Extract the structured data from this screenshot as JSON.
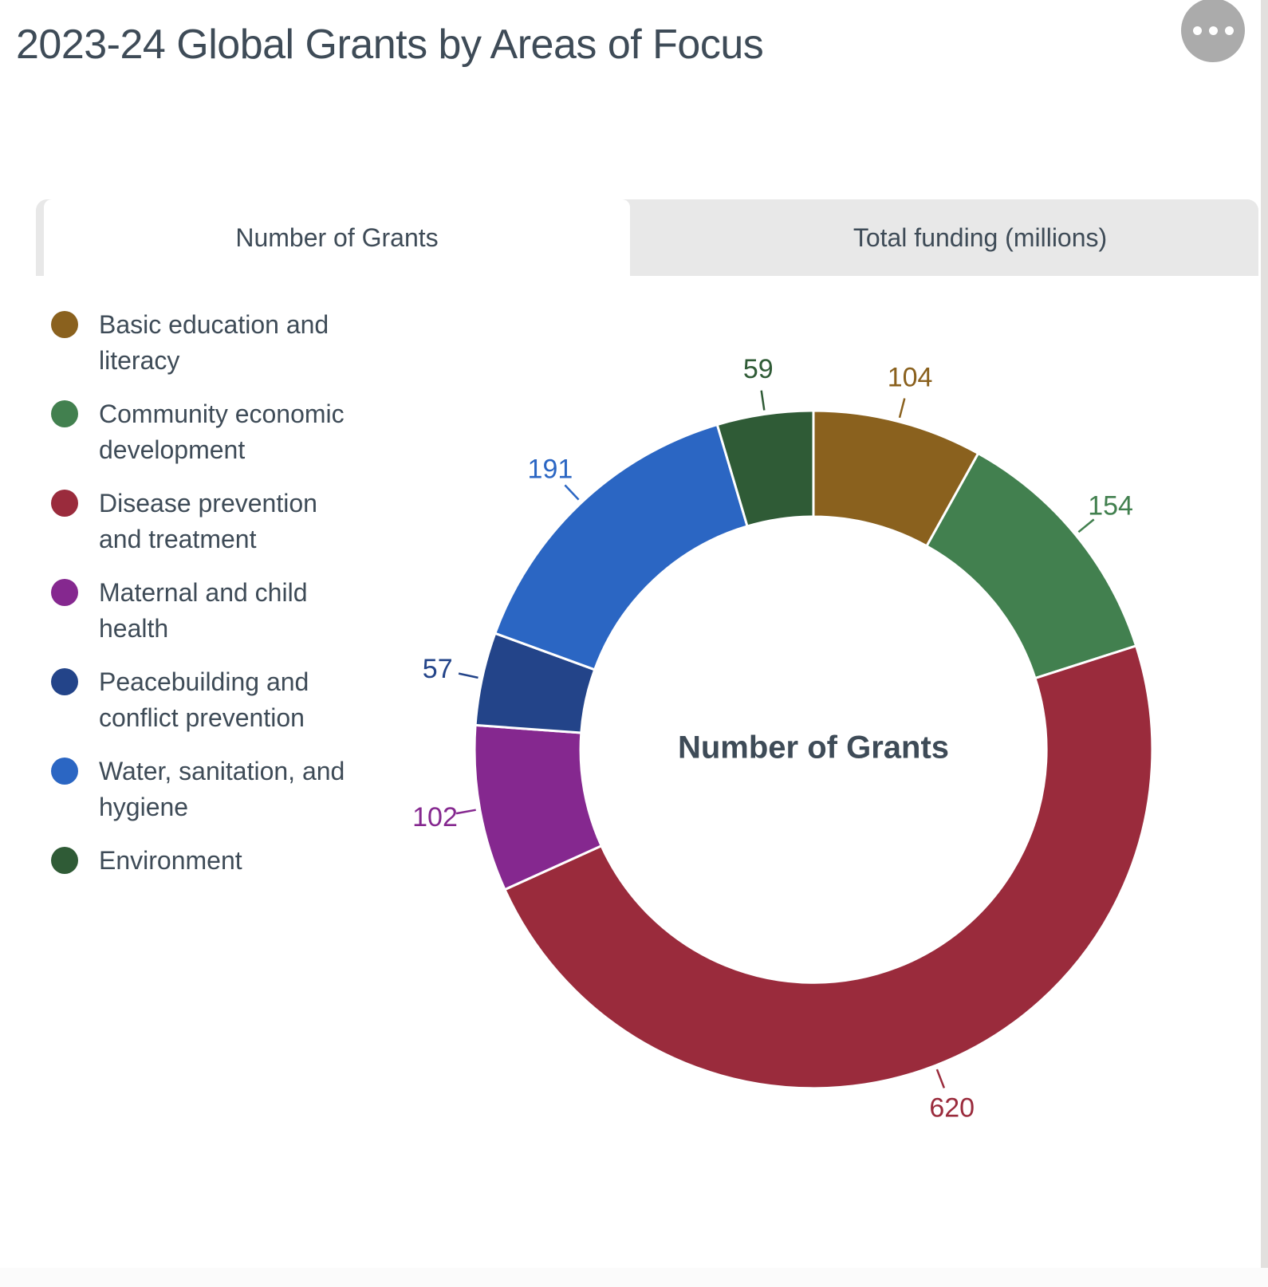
{
  "title": "2023-24 Global Grants by Areas of Focus",
  "more_options": {
    "icon": "ellipsis-icon"
  },
  "tabs": [
    {
      "label": "Number of Grants",
      "active": true
    },
    {
      "label": "Total funding (millions)",
      "active": false
    }
  ],
  "chart_data": {
    "type": "pie",
    "subtype": "donut",
    "title": "Number of Grants",
    "center_label": "Number of Grants",
    "legend_position": "left",
    "categories": [
      "Basic education and literacy",
      "Community economic development",
      "Disease prevention and treatment",
      "Maternal and child health",
      "Peacebuilding and conflict prevention",
      "Water, sanitation, and hygiene",
      "Environment"
    ],
    "values": [
      104,
      154,
      620,
      102,
      57,
      191,
      59
    ],
    "colors": [
      "#8a611e",
      "#42804f",
      "#9a2b3c",
      "#85288f",
      "#234489",
      "#2b66c3",
      "#2f5b36"
    ]
  },
  "legend": {
    "items": [
      {
        "lines": [
          "Basic education and",
          "literacy"
        ]
      },
      {
        "lines": [
          "Community economic",
          "development"
        ]
      },
      {
        "lines": [
          "Disease prevention",
          "and treatment"
        ]
      },
      {
        "lines": [
          "Maternal and child",
          "health"
        ]
      },
      {
        "lines": [
          "Peacebuilding and",
          "conflict prevention"
        ]
      },
      {
        "lines": [
          "Water, sanitation, and",
          "hygiene"
        ]
      },
      {
        "lines": [
          "Environment"
        ]
      }
    ]
  }
}
